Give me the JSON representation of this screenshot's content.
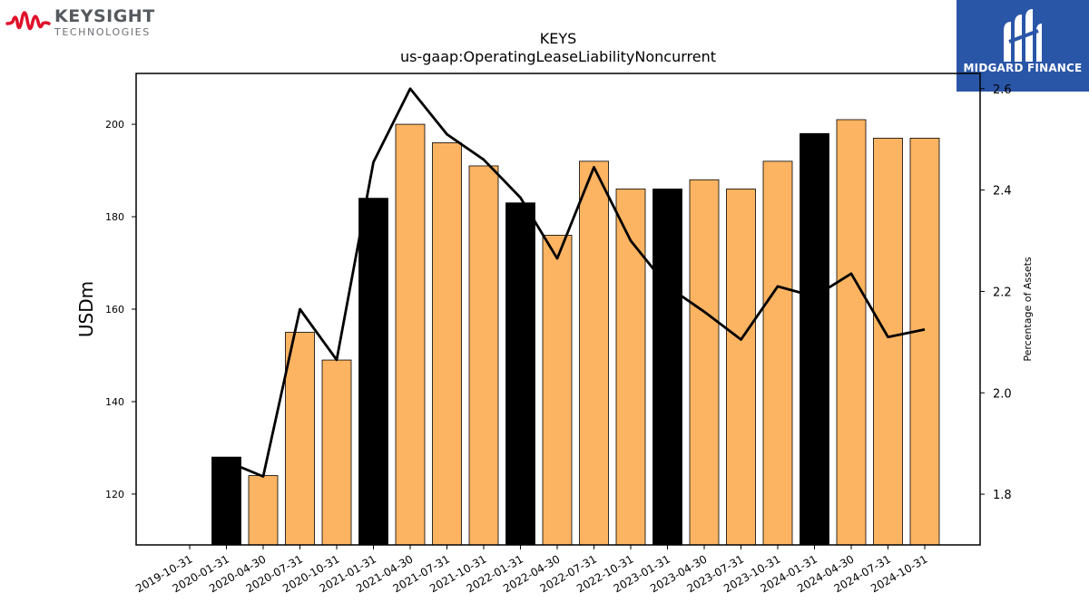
{
  "logos": {
    "left": {
      "brand": "KEYSIGHT",
      "sub": "TECHNOLOGIES",
      "color": "#e0112b"
    },
    "right": {
      "name": "MIDGARD FINANCE",
      "background": "#2a56a8"
    }
  },
  "chart_data": {
    "type": "bar",
    "title": "KEYS",
    "subtitle": "us-gaap:OperatingLeaseLiabilityNoncurrent",
    "ylabel": "USDm",
    "y2label": "Percentage of Assets",
    "ylim": [
      109,
      211
    ],
    "y2lim": [
      1.7,
      2.63
    ],
    "yticks": [
      120,
      140,
      160,
      180,
      200
    ],
    "y2ticks": [
      1.8,
      2.0,
      2.2,
      2.4,
      2.6
    ],
    "categories": [
      "2019-10-31",
      "2020-01-31",
      "2020-04-30",
      "2020-07-31",
      "2020-10-31",
      "2021-01-31",
      "2021-04-30",
      "2021-07-31",
      "2021-10-31",
      "2022-01-31",
      "2022-04-30",
      "2022-07-31",
      "2022-10-31",
      "2023-01-31",
      "2023-04-30",
      "2023-07-31",
      "2023-10-31",
      "2024-01-31",
      "2024-04-30",
      "2024-07-31",
      "2024-10-31"
    ],
    "series": [
      {
        "type": "bar",
        "axis": "left",
        "values": [
          null,
          128,
          124,
          155,
          149,
          184,
          200,
          196,
          191,
          183,
          176,
          192,
          186,
          186,
          188,
          186,
          192,
          198,
          201,
          197,
          197
        ],
        "highlight": [
          false,
          true,
          false,
          false,
          false,
          true,
          false,
          false,
          false,
          true,
          false,
          false,
          false,
          true,
          false,
          false,
          false,
          true,
          false,
          false,
          false
        ],
        "color": "#fdb462",
        "highlight_color": "#000000"
      },
      {
        "type": "line",
        "axis": "right",
        "values": [
          null,
          1.865,
          1.835,
          2.165,
          2.065,
          2.455,
          2.6,
          2.51,
          2.46,
          2.385,
          2.265,
          2.445,
          2.3,
          2.21,
          2.16,
          2.105,
          2.21,
          2.19,
          2.235,
          2.11,
          2.125
        ],
        "color": "#000000"
      }
    ],
    "grid": false,
    "legend": "none"
  }
}
